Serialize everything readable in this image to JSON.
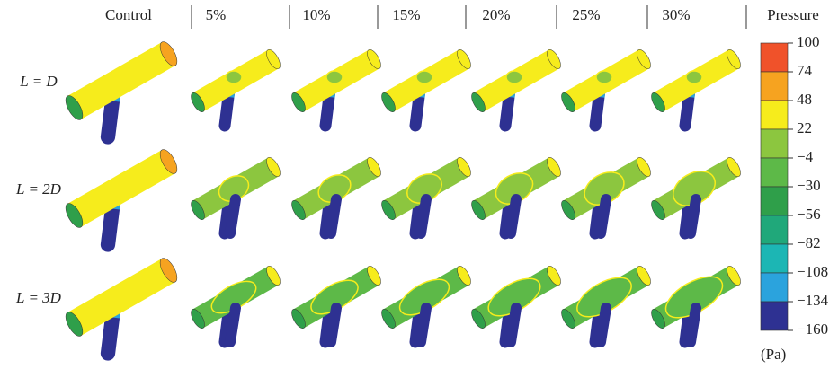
{
  "columns": [
    "Control",
    "5%",
    "10%",
    "15%",
    "20%",
    "25%",
    "30%"
  ],
  "rows": [
    "L = D",
    "L = 2D",
    "L = 3D"
  ],
  "colorbar": {
    "title": "Pressure",
    "unit": "(Pa)",
    "ticks": [
      100,
      74,
      48,
      22,
      {
        "value": -4,
        "label": "−4"
      },
      {
        "value": -30,
        "label": "−30"
      },
      {
        "value": -56,
        "label": "−56"
      },
      {
        "value": -82,
        "label": "−82"
      },
      {
        "value": -108,
        "label": "−108"
      },
      {
        "value": -134,
        "label": "−134"
      },
      {
        "value": -160,
        "label": "−160"
      }
    ],
    "colors": [
      "#f0522a",
      "#f6a320",
      "#f6ec1c",
      "#8cc63f",
      "#5db948",
      "#2f9f4a",
      "#20a87a",
      "#1cb6b4",
      "#2ba3dd",
      "#2e3192"
    ]
  }
}
